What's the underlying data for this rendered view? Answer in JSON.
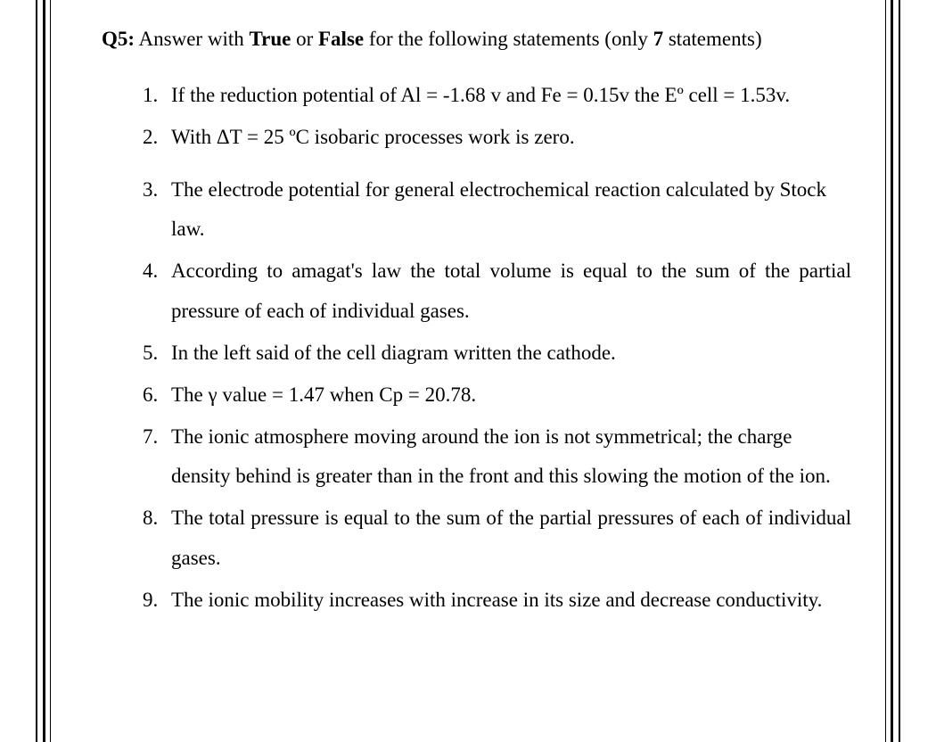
{
  "colors": {
    "background": "#ffffff",
    "text": "#000000",
    "border": "#000000"
  },
  "typography": {
    "font_family": "Times New Roman",
    "base_fontsize_pt": 17,
    "line_height": 1.95
  },
  "question": {
    "label": "Q5:",
    "prompt_pre": "  Answer with ",
    "true_word": "True",
    "mid": " or ",
    "false_word": "False",
    "prompt_post": " for the following statements (only ",
    "count": "7",
    "prompt_end": " statements)"
  },
  "statements": {
    "s1": {
      "n": "1.",
      "text": "If the reduction potential of Al = -1.68 v and Fe = 0.15v the Eº cell = 1.53v."
    },
    "s2": {
      "n": "2.",
      "text": "With ΔT = 25 ºC isobaric processes work is zero."
    },
    "s3": {
      "n": "3.",
      "text": "The electrode potential for general electrochemical reaction calculated by Stock law."
    },
    "s4": {
      "n": "4.",
      "text": "According to amagat's law the total volume is equal to the sum of the partial pressure of each of individual gases."
    },
    "s5": {
      "n": "5.",
      "text": "In the left said of the cell diagram written the cathode."
    },
    "s6": {
      "n": "6.",
      "text": "The γ value = 1.47 when Cp = 20.78."
    },
    "s7": {
      "n": "7.",
      "text": "The ionic atmosphere moving around the ion is not symmetrical; the charge density behind is greater than in the front and this slowing the motion of the ion."
    },
    "s8": {
      "n": "8.",
      "text": "The total pressure is equal to the sum of the partial pressures of each of individual gases."
    },
    "s9": {
      "n": "9.",
      "text": "The ionic mobility increases with increase in its size and decrease conductivity."
    }
  }
}
